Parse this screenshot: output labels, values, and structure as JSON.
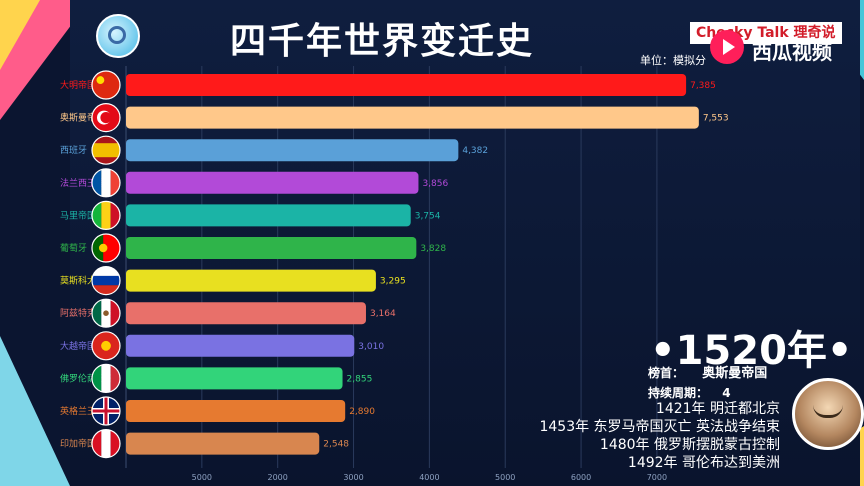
{
  "page_title": "四千年世界变迁史",
  "brand": {
    "label": "Checky Talk 理奇说"
  },
  "unit_label": "单位：模拟分",
  "watermark": "西瓜视频",
  "current": {
    "year": "•1520年•",
    "leader_label": "榜首：",
    "leader_value": "奥斯曼帝国",
    "duration_label": "持续周期：",
    "duration_value": "4"
  },
  "events": [
    "1421年 明迁都北京",
    "1453年 东罗马帝国灭亡 英法战争结束",
    "1480年 俄罗斯摆脱蒙古控制",
    "1492年 哥伦布达到美洲"
  ],
  "colors": {
    "background": "#0b1530",
    "accent_red": "#d21d2a"
  },
  "chart_data": {
    "type": "bar",
    "orientation": "horizontal",
    "categories": [
      "大明帝国",
      "奥斯曼帝国",
      "西班牙",
      "法兰西王国",
      "马里帝国",
      "葡萄牙",
      "莫斯科大公国",
      "阿兹特克帝国",
      "大越帝国",
      "佛罗伦萨王国",
      "英格兰王国",
      "印加帝国"
    ],
    "values": [
      7385,
      7553,
      4382,
      3856,
      3754,
      3828,
      3295,
      3164,
      3010,
      2855,
      2890,
      2548
    ],
    "value_labels": [
      "7,385",
      "7,553",
      "4,382",
      "3,856",
      "3,754",
      "3,828",
      "3,295",
      "3,164",
      "3,010",
      "2,855",
      "2,890",
      "2,548"
    ],
    "colors": [
      "#ff1a1a",
      "#ffc88a",
      "#5aa0d8",
      "#b24ad8",
      "#1bb4a6",
      "#2fb44a",
      "#e8e020",
      "#e8706a",
      "#7a72e2",
      "#32d47a",
      "#e67a30",
      "#d8864f"
    ],
    "flags": [
      "china",
      "turkey",
      "spain",
      "france",
      "mali",
      "portugal",
      "russia",
      "mexico",
      "vietnam",
      "italy",
      "uk",
      "peru"
    ],
    "xticks": [
      "5000",
      "2000",
      "3000",
      "4000",
      "5000",
      "6000",
      "7000"
    ],
    "xlim": [
      0,
      7700
    ],
    "grid": true
  }
}
